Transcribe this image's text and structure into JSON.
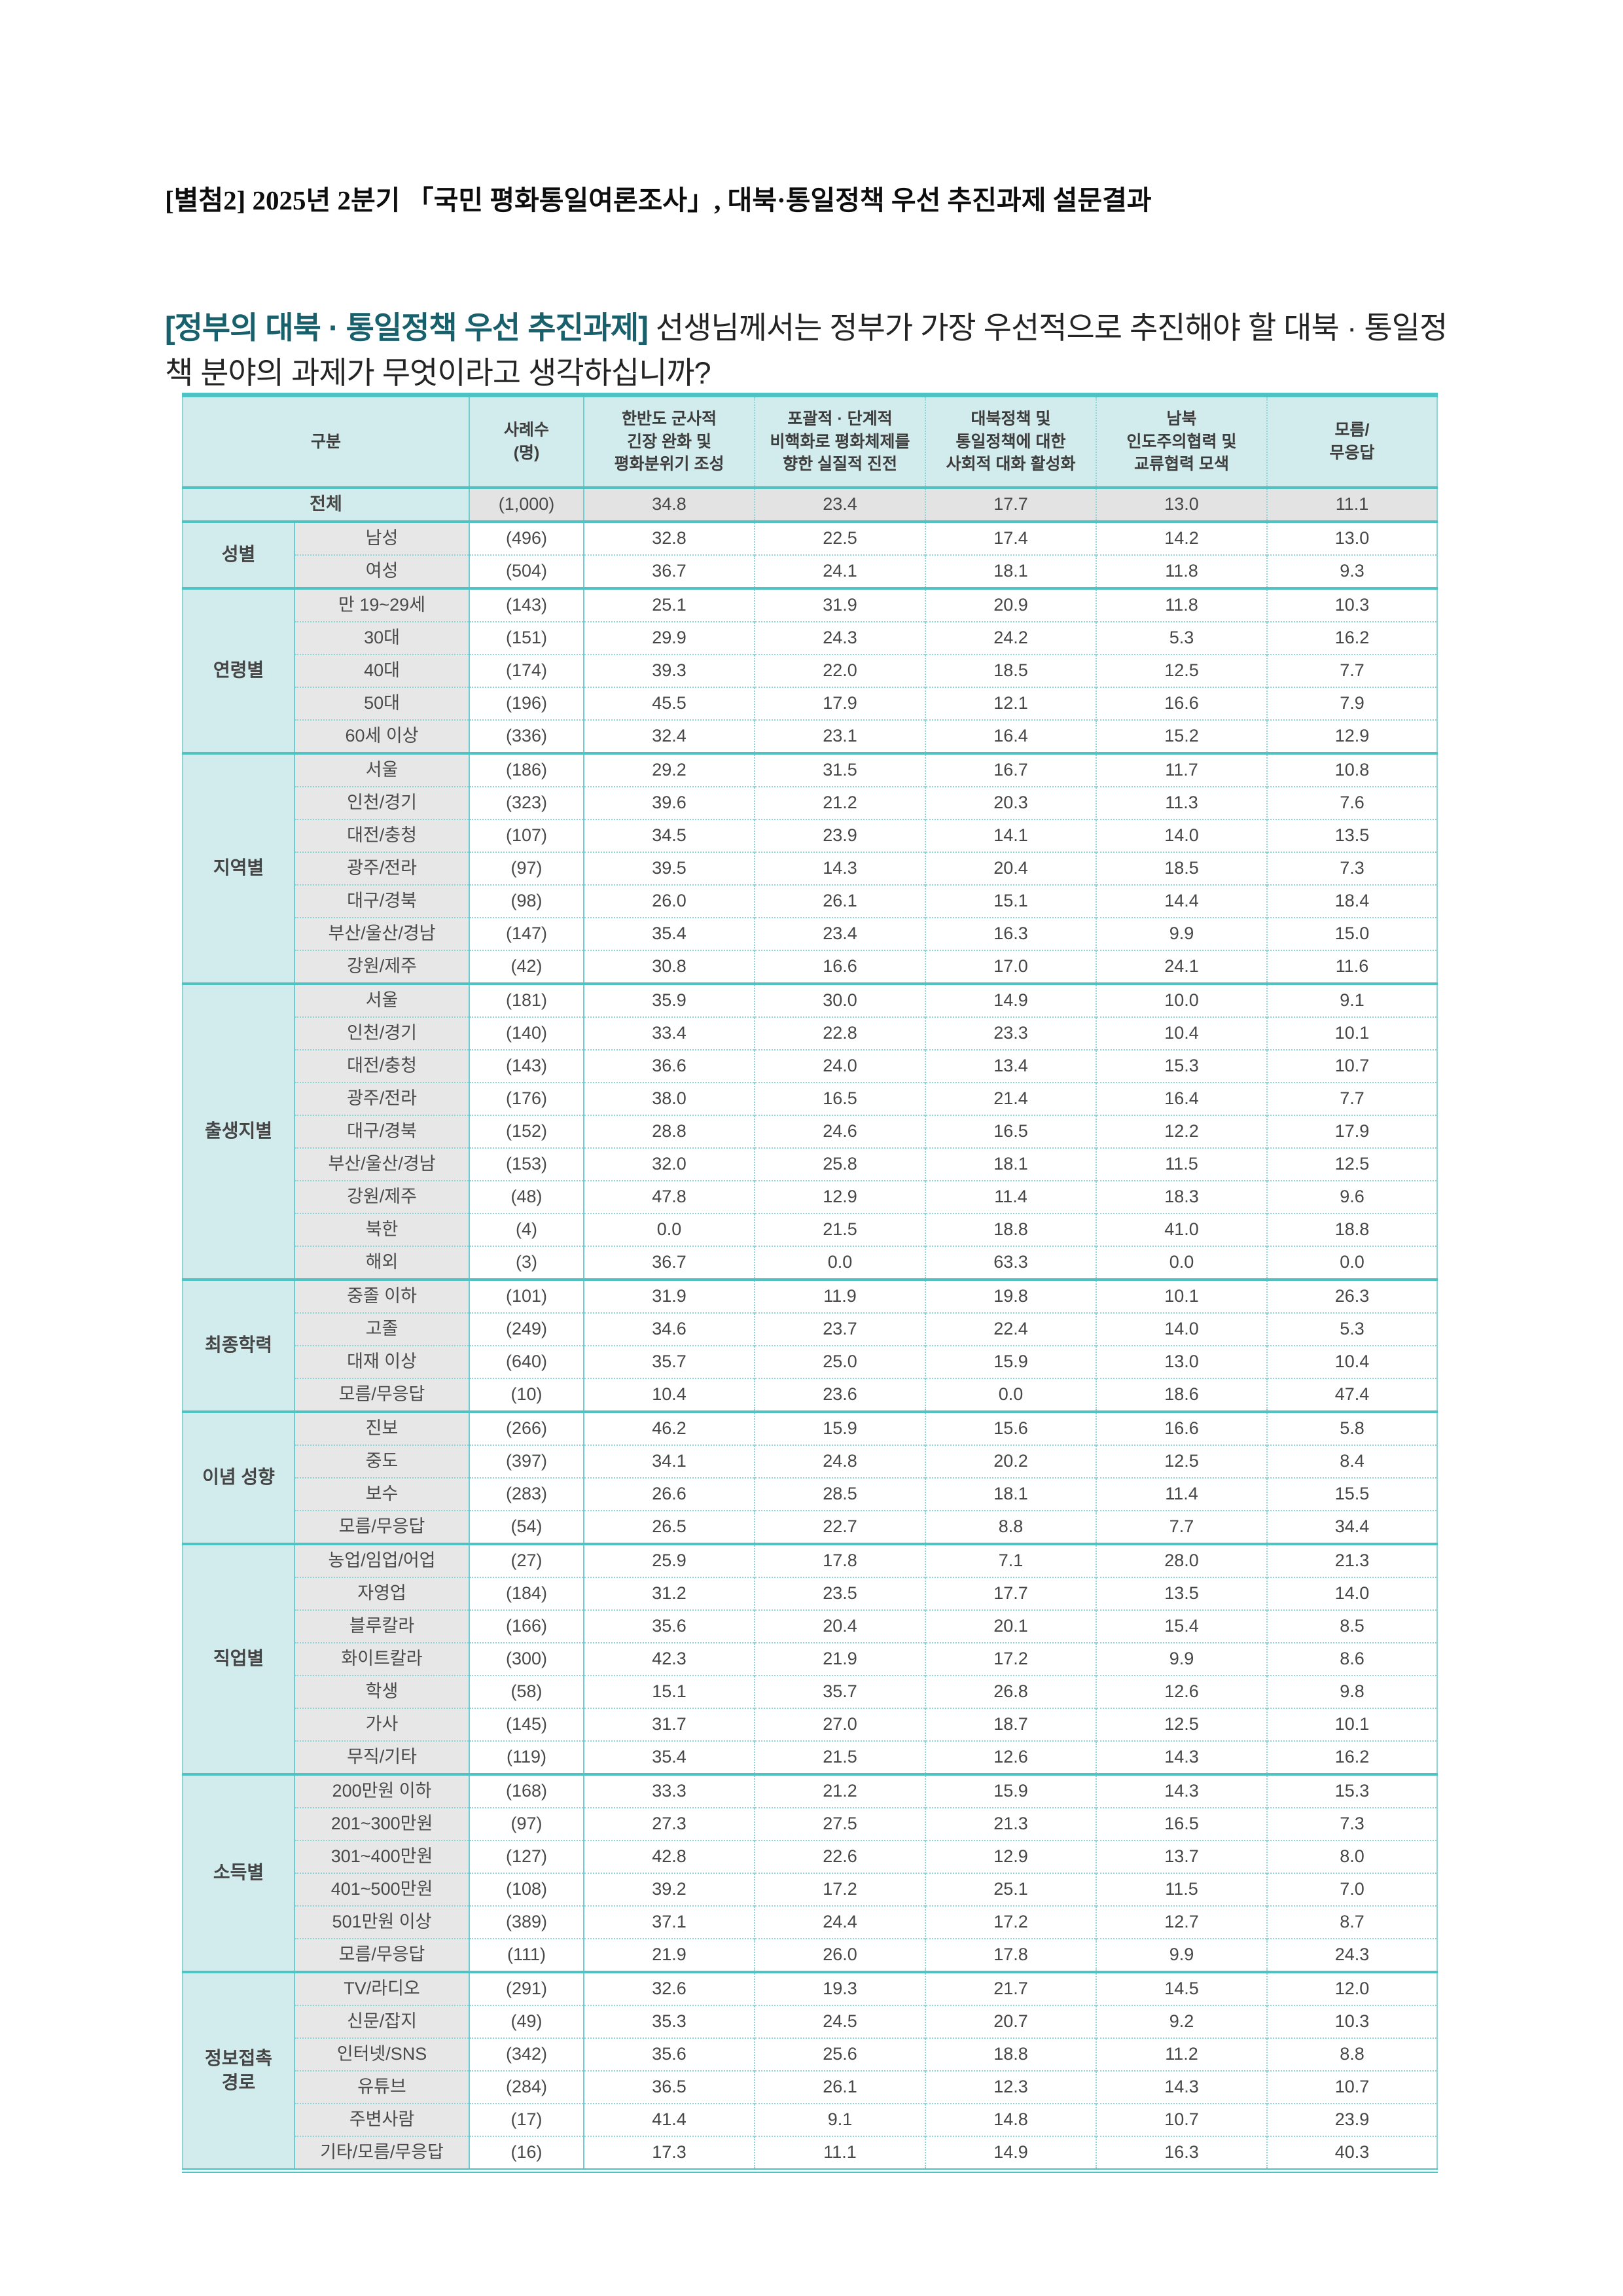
{
  "page_title": "[별첨2] 2025년 2분기 「국민 평화통일여론조사」, 대북·통일정책 우선 추진과제 설문결과",
  "question": {
    "tag": "[정부의 대북 · 통일정책 우선 추진과제]",
    "rest": " 선생님께서는 정부가 가장 우선적으로 추진해야 할 대북 · 통일정책 분야의 과제가 무엇이라고 생각하십니까?"
  },
  "colors": {
    "accent_teal": "#4fc2c4",
    "heading_teal": "#19606d",
    "header_bg": "#d2ebec",
    "row_label_bg": "#e7e7e7",
    "total_row_bg": "#e3e3e3"
  },
  "table": {
    "headers": [
      "구분",
      "사례수\n(명)",
      "한반도 군사적\n긴장 완화 및\n평화분위기 조성",
      "포괄적 · 단계적\n비핵화로 평화체제를\n향한 실질적 진전",
      "대북정책 및\n통일정책에 대한\n사회적 대화 활성화",
      "남북\n인도주의협력 및\n교류협력 모색",
      "모름/\n무응답"
    ],
    "total": {
      "label": "전체",
      "n": "(1,000)",
      "values": [
        "34.8",
        "23.4",
        "17.7",
        "13.0",
        "11.1"
      ]
    },
    "groups": [
      {
        "group": "성별",
        "rows": [
          {
            "label": "남성",
            "n": "(496)",
            "values": [
              "32.8",
              "22.5",
              "17.4",
              "14.2",
              "13.0"
            ]
          },
          {
            "label": "여성",
            "n": "(504)",
            "values": [
              "36.7",
              "24.1",
              "18.1",
              "11.8",
              "9.3"
            ]
          }
        ]
      },
      {
        "group": "연령별",
        "rows": [
          {
            "label": "만 19~29세",
            "n": "(143)",
            "values": [
              "25.1",
              "31.9",
              "20.9",
              "11.8",
              "10.3"
            ]
          },
          {
            "label": "30대",
            "n": "(151)",
            "values": [
              "29.9",
              "24.3",
              "24.2",
              "5.3",
              "16.2"
            ]
          },
          {
            "label": "40대",
            "n": "(174)",
            "values": [
              "39.3",
              "22.0",
              "18.5",
              "12.5",
              "7.7"
            ]
          },
          {
            "label": "50대",
            "n": "(196)",
            "values": [
              "45.5",
              "17.9",
              "12.1",
              "16.6",
              "7.9"
            ]
          },
          {
            "label": "60세 이상",
            "n": "(336)",
            "values": [
              "32.4",
              "23.1",
              "16.4",
              "15.2",
              "12.9"
            ]
          }
        ]
      },
      {
        "group": "지역별",
        "rows": [
          {
            "label": "서울",
            "n": "(186)",
            "values": [
              "29.2",
              "31.5",
              "16.7",
              "11.7",
              "10.8"
            ]
          },
          {
            "label": "인천/경기",
            "n": "(323)",
            "values": [
              "39.6",
              "21.2",
              "20.3",
              "11.3",
              "7.6"
            ]
          },
          {
            "label": "대전/충청",
            "n": "(107)",
            "values": [
              "34.5",
              "23.9",
              "14.1",
              "14.0",
              "13.5"
            ]
          },
          {
            "label": "광주/전라",
            "n": "(97)",
            "values": [
              "39.5",
              "14.3",
              "20.4",
              "18.5",
              "7.3"
            ]
          },
          {
            "label": "대구/경북",
            "n": "(98)",
            "values": [
              "26.0",
              "26.1",
              "15.1",
              "14.4",
              "18.4"
            ]
          },
          {
            "label": "부산/울산/경남",
            "n": "(147)",
            "values": [
              "35.4",
              "23.4",
              "16.3",
              "9.9",
              "15.0"
            ]
          },
          {
            "label": "강원/제주",
            "n": "(42)",
            "values": [
              "30.8",
              "16.6",
              "17.0",
              "24.1",
              "11.6"
            ]
          }
        ]
      },
      {
        "group": "출생지별",
        "rows": [
          {
            "label": "서울",
            "n": "(181)",
            "values": [
              "35.9",
              "30.0",
              "14.9",
              "10.0",
              "9.1"
            ]
          },
          {
            "label": "인천/경기",
            "n": "(140)",
            "values": [
              "33.4",
              "22.8",
              "23.3",
              "10.4",
              "10.1"
            ]
          },
          {
            "label": "대전/충청",
            "n": "(143)",
            "values": [
              "36.6",
              "24.0",
              "13.4",
              "15.3",
              "10.7"
            ]
          },
          {
            "label": "광주/전라",
            "n": "(176)",
            "values": [
              "38.0",
              "16.5",
              "21.4",
              "16.4",
              "7.7"
            ]
          },
          {
            "label": "대구/경북",
            "n": "(152)",
            "values": [
              "28.8",
              "24.6",
              "16.5",
              "12.2",
              "17.9"
            ]
          },
          {
            "label": "부산/울산/경남",
            "n": "(153)",
            "values": [
              "32.0",
              "25.8",
              "18.1",
              "11.5",
              "12.5"
            ]
          },
          {
            "label": "강원/제주",
            "n": "(48)",
            "values": [
              "47.8",
              "12.9",
              "11.4",
              "18.3",
              "9.6"
            ]
          },
          {
            "label": "북한",
            "n": "(4)",
            "values": [
              "0.0",
              "21.5",
              "18.8",
              "41.0",
              "18.8"
            ]
          },
          {
            "label": "해외",
            "n": "(3)",
            "values": [
              "36.7",
              "0.0",
              "63.3",
              "0.0",
              "0.0"
            ]
          }
        ]
      },
      {
        "group": "최종학력",
        "rows": [
          {
            "label": "중졸 이하",
            "n": "(101)",
            "values": [
              "31.9",
              "11.9",
              "19.8",
              "10.1",
              "26.3"
            ]
          },
          {
            "label": "고졸",
            "n": "(249)",
            "values": [
              "34.6",
              "23.7",
              "22.4",
              "14.0",
              "5.3"
            ]
          },
          {
            "label": "대재 이상",
            "n": "(640)",
            "values": [
              "35.7",
              "25.0",
              "15.9",
              "13.0",
              "10.4"
            ]
          },
          {
            "label": "모름/무응답",
            "n": "(10)",
            "values": [
              "10.4",
              "23.6",
              "0.0",
              "18.6",
              "47.4"
            ]
          }
        ]
      },
      {
        "group": "이념 성향",
        "rows": [
          {
            "label": "진보",
            "n": "(266)",
            "values": [
              "46.2",
              "15.9",
              "15.6",
              "16.6",
              "5.8"
            ]
          },
          {
            "label": "중도",
            "n": "(397)",
            "values": [
              "34.1",
              "24.8",
              "20.2",
              "12.5",
              "8.4"
            ]
          },
          {
            "label": "보수",
            "n": "(283)",
            "values": [
              "26.6",
              "28.5",
              "18.1",
              "11.4",
              "15.5"
            ]
          },
          {
            "label": "모름/무응답",
            "n": "(54)",
            "values": [
              "26.5",
              "22.7",
              "8.8",
              "7.7",
              "34.4"
            ]
          }
        ]
      },
      {
        "group": "직업별",
        "rows": [
          {
            "label": "농업/임업/어업",
            "n": "(27)",
            "values": [
              "25.9",
              "17.8",
              "7.1",
              "28.0",
              "21.3"
            ]
          },
          {
            "label": "자영업",
            "n": "(184)",
            "values": [
              "31.2",
              "23.5",
              "17.7",
              "13.5",
              "14.0"
            ]
          },
          {
            "label": "블루칼라",
            "n": "(166)",
            "values": [
              "35.6",
              "20.4",
              "20.1",
              "15.4",
              "8.5"
            ]
          },
          {
            "label": "화이트칼라",
            "n": "(300)",
            "values": [
              "42.3",
              "21.9",
              "17.2",
              "9.9",
              "8.6"
            ]
          },
          {
            "label": "학생",
            "n": "(58)",
            "values": [
              "15.1",
              "35.7",
              "26.8",
              "12.6",
              "9.8"
            ]
          },
          {
            "label": "가사",
            "n": "(145)",
            "values": [
              "31.7",
              "27.0",
              "18.7",
              "12.5",
              "10.1"
            ]
          },
          {
            "label": "무직/기타",
            "n": "(119)",
            "values": [
              "35.4",
              "21.5",
              "12.6",
              "14.3",
              "16.2"
            ]
          }
        ]
      },
      {
        "group": "소득별",
        "rows": [
          {
            "label": "200만원 이하",
            "n": "(168)",
            "values": [
              "33.3",
              "21.2",
              "15.9",
              "14.3",
              "15.3"
            ]
          },
          {
            "label": "201~300만원",
            "n": "(97)",
            "values": [
              "27.3",
              "27.5",
              "21.3",
              "16.5",
              "7.3"
            ]
          },
          {
            "label": "301~400만원",
            "n": "(127)",
            "values": [
              "42.8",
              "22.6",
              "12.9",
              "13.7",
              "8.0"
            ]
          },
          {
            "label": "401~500만원",
            "n": "(108)",
            "values": [
              "39.2",
              "17.2",
              "25.1",
              "11.5",
              "7.0"
            ]
          },
          {
            "label": "501만원 이상",
            "n": "(389)",
            "values": [
              "37.1",
              "24.4",
              "17.2",
              "12.7",
              "8.7"
            ]
          },
          {
            "label": "모름/무응답",
            "n": "(111)",
            "values": [
              "21.9",
              "26.0",
              "17.8",
              "9.9",
              "24.3"
            ]
          }
        ]
      },
      {
        "group": "정보접촉\n경로",
        "rows": [
          {
            "label": "TV/라디오",
            "n": "(291)",
            "values": [
              "32.6",
              "19.3",
              "21.7",
              "14.5",
              "12.0"
            ]
          },
          {
            "label": "신문/잡지",
            "n": "(49)",
            "values": [
              "35.3",
              "24.5",
              "20.7",
              "9.2",
              "10.3"
            ]
          },
          {
            "label": "인터넷/SNS",
            "n": "(342)",
            "values": [
              "35.6",
              "25.6",
              "18.8",
              "11.2",
              "8.8"
            ]
          },
          {
            "label": "유튜브",
            "n": "(284)",
            "values": [
              "36.5",
              "26.1",
              "12.3",
              "14.3",
              "10.7"
            ]
          },
          {
            "label": "주변사람",
            "n": "(17)",
            "values": [
              "41.4",
              "9.1",
              "14.8",
              "10.7",
              "23.9"
            ]
          },
          {
            "label": "기타/모름/무응답",
            "n": "(16)",
            "values": [
              "17.3",
              "11.1",
              "14.9",
              "16.3",
              "40.3"
            ]
          }
        ]
      }
    ]
  }
}
